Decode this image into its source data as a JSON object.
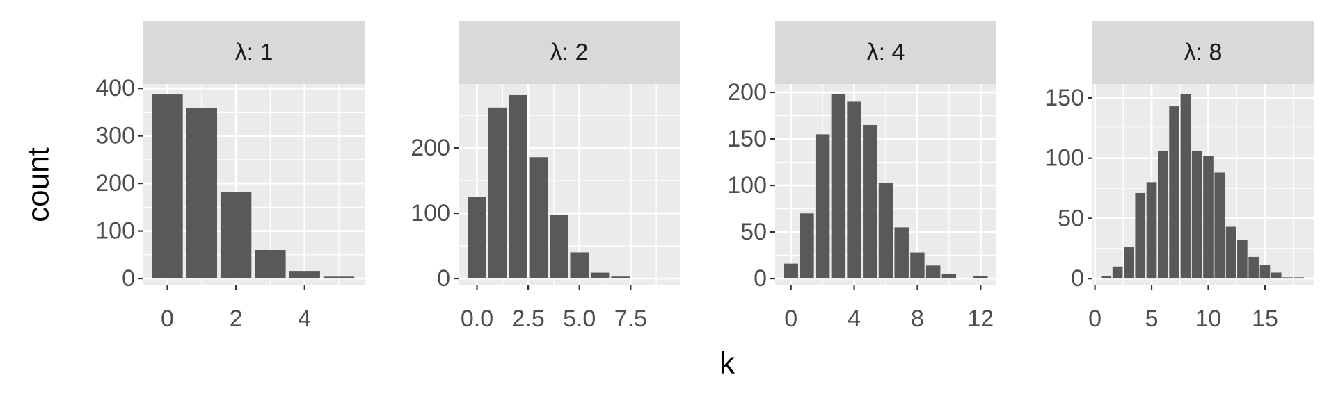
{
  "axis_labels": {
    "x": "k",
    "y": "count"
  },
  "chart_data": [
    {
      "type": "bar",
      "title": "λ: 1",
      "color": "#595959",
      "grid": true,
      "x": [
        0,
        1,
        2,
        3,
        4,
        5
      ],
      "values": [
        387,
        358,
        182,
        60,
        16,
        4
      ],
      "xlim": [
        -0.7,
        5.75
      ],
      "ylim": [
        -14.5,
        409
      ],
      "xticks": [
        0,
        2,
        4
      ],
      "yticks": [
        0,
        100,
        200,
        300,
        400
      ],
      "minor_xticks": [
        1,
        3,
        5
      ],
      "minor_yticks": [
        50,
        150,
        250,
        350
      ]
    },
    {
      "type": "bar",
      "title": "λ: 2",
      "color": "#595959",
      "grid": true,
      "x": [
        0,
        1,
        2,
        3,
        4,
        5,
        6,
        7,
        9
      ],
      "values": [
        125,
        262,
        281,
        186,
        97,
        40,
        9,
        3,
        1
      ],
      "xlim": [
        -0.9,
        9.9
      ],
      "ylim": [
        -10.6,
        298
      ],
      "xticks": [
        {
          "value": 0,
          "label": "0.0"
        },
        2.5,
        {
          "value": 5,
          "label": "5.0"
        },
        7.5
      ],
      "yticks": [
        0,
        100,
        200
      ],
      "minor_xticks": [
        1.25,
        3.75,
        6.25,
        8.75
      ],
      "minor_yticks": [
        50,
        150,
        250
      ]
    },
    {
      "type": "bar",
      "title": "λ: 4",
      "color": "#595959",
      "grid": true,
      "x": [
        0,
        1,
        2,
        3,
        4,
        5,
        6,
        7,
        8,
        9,
        10,
        12
      ],
      "values": [
        16,
        70,
        155,
        198,
        190,
        165,
        103,
        55,
        28,
        14,
        5,
        3
      ],
      "xlim": [
        -1.0,
        13.0
      ],
      "ylim": [
        -7.4,
        209
      ],
      "xticks": [
        0,
        4,
        8,
        12
      ],
      "yticks": [
        0,
        50,
        100,
        150,
        200
      ],
      "minor_xticks": [
        2,
        6,
        10
      ],
      "minor_yticks": [
        25,
        75,
        125,
        175
      ]
    },
    {
      "type": "bar",
      "title": "λ: 8",
      "color": "#595959",
      "grid": true,
      "x": [
        1,
        2,
        3,
        4,
        5,
        6,
        7,
        8,
        9,
        10,
        11,
        12,
        13,
        14,
        15,
        16,
        17,
        18
      ],
      "values": [
        2,
        10,
        26,
        71,
        80,
        106,
        143,
        153,
        106,
        102,
        88,
        43,
        32,
        18,
        11,
        5,
        1,
        1
      ],
      "xlim": [
        -0.22,
        19.3
      ],
      "ylim": [
        -5.7,
        161.5
      ],
      "xticks": [
        0,
        5,
        10,
        15
      ],
      "yticks": [
        0,
        50,
        100,
        150
      ],
      "minor_xticks": [
        2.5,
        7.5,
        12.5,
        17.5
      ],
      "minor_yticks": [
        25,
        75,
        125
      ]
    }
  ]
}
